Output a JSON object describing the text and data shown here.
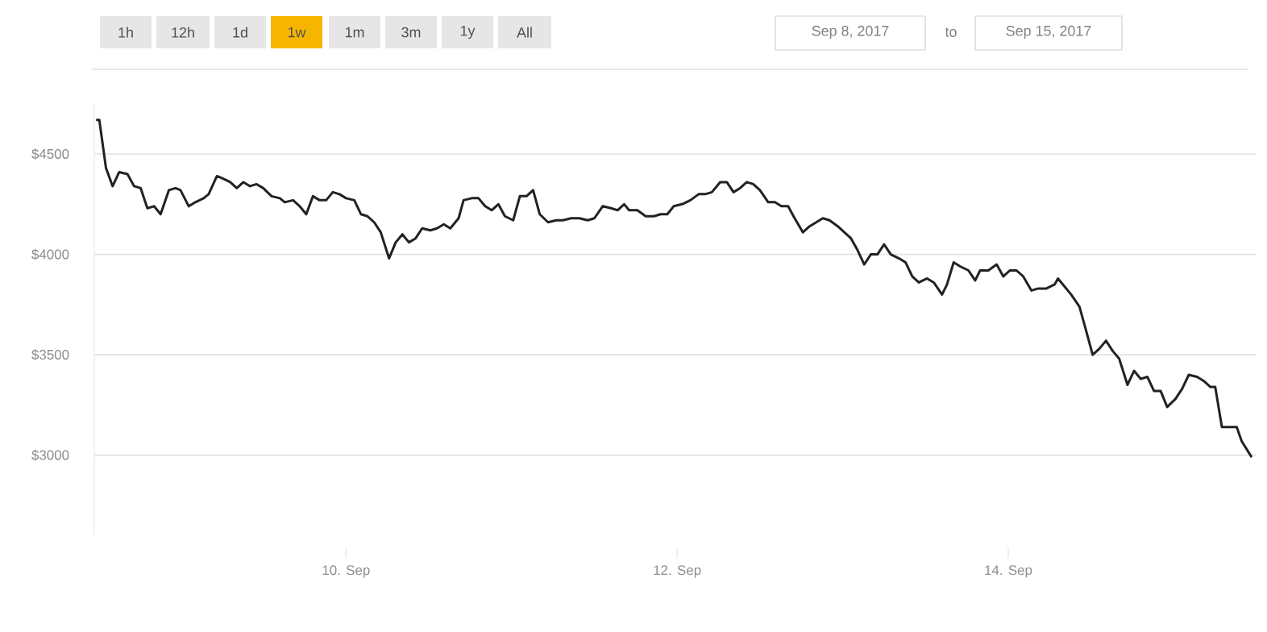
{
  "chart_data": {
    "type": "line",
    "grid": "y",
    "marker": "none",
    "line_style": "solid",
    "xlim": [
      "2017-09-08T11:31",
      "2017-09-15T12:00"
    ],
    "ylim": [
      2600,
      4750
    ],
    "xticks": [
      {
        "value": "2017-09-10",
        "label": "10. Sep"
      },
      {
        "value": "2017-09-12",
        "label": "12. Sep"
      },
      {
        "value": "2017-09-14",
        "label": "14. Sep"
      }
    ],
    "yticks": [
      {
        "value": 3000,
        "label": "$3000"
      },
      {
        "value": 3500,
        "label": "$3500"
      },
      {
        "value": 4000,
        "label": "$4000"
      },
      {
        "value": 4500,
        "label": "$4500"
      }
    ],
    "annotations": [
      "1h",
      "12h",
      "1d",
      "1w",
      "1m",
      "3m",
      "1y",
      "All",
      "Sep 8, 2017",
      "to",
      "Sep 15, 2017"
    ],
    "series": [
      {
        "color": "#222222",
        "x": [
          "2017-09-08T11:46",
          "2017-09-08T12:14",
          "2017-09-08T13:12",
          "2017-09-08T14:10",
          "2017-09-08T15:07",
          "2017-09-08T16:19",
          "2017-09-08T17:17",
          "2017-09-08T18:14",
          "2017-09-08T19:12",
          "2017-09-08T20:10",
          "2017-09-08T21:07",
          "2017-09-08T22:19",
          "2017-09-08T23:17",
          "2017-09-09T00:00",
          "2017-09-09T01:12",
          "2017-09-09T02:10",
          "2017-09-09T03:22",
          "2017-09-09T04:05",
          "2017-09-09T05:17",
          "2017-09-09T06:00",
          "2017-09-09T07:12",
          "2017-09-09T08:10",
          "2017-09-09T09:07",
          "2017-09-09T10:05",
          "2017-09-09T11:02",
          "2017-09-09T12:00",
          "2017-09-09T13:12",
          "2017-09-09T14:24",
          "2017-09-09T15:07",
          "2017-09-09T16:19",
          "2017-09-09T17:17",
          "2017-09-09T18:14",
          "2017-09-09T19:12",
          "2017-09-09T20:10",
          "2017-09-09T21:07",
          "2017-09-09T22:05",
          "2017-09-09T23:02",
          "2017-09-10T00:00",
          "2017-09-10T01:12",
          "2017-09-10T02:10",
          "2017-09-10T03:07",
          "2017-09-10T04:05",
          "2017-09-10T05:02",
          "2017-09-10T06:14",
          "2017-09-10T07:12",
          "2017-09-10T08:10",
          "2017-09-10T09:07",
          "2017-09-10T10:05",
          "2017-09-10T11:02",
          "2017-09-10T12:14",
          "2017-09-10T13:12",
          "2017-09-10T14:10",
          "2017-09-10T15:07",
          "2017-09-10T16:19",
          "2017-09-10T17:02",
          "2017-09-10T18:14",
          "2017-09-10T19:12",
          "2017-09-10T20:10",
          "2017-09-10T21:07",
          "2017-09-10T22:05",
          "2017-09-10T23:02",
          "2017-09-11T00:14",
          "2017-09-11T01:12",
          "2017-09-11T02:10",
          "2017-09-11T03:07",
          "2017-09-11T04:05",
          "2017-09-11T05:17",
          "2017-09-11T06:29",
          "2017-09-11T07:26",
          "2017-09-11T08:38",
          "2017-09-11T09:50",
          "2017-09-11T11:02",
          "2017-09-11T12:00",
          "2017-09-11T13:12",
          "2017-09-11T14:24",
          "2017-09-11T15:22",
          "2017-09-11T16:19",
          "2017-09-11T17:02",
          "2017-09-11T18:14",
          "2017-09-11T19:26",
          "2017-09-11T20:38",
          "2017-09-11T21:36",
          "2017-09-11T22:34",
          "2017-09-11T23:31",
          "2017-09-12T00:43",
          "2017-09-12T01:55",
          "2017-09-12T03:07",
          "2017-09-12T04:05",
          "2017-09-12T05:02",
          "2017-09-12T06:14",
          "2017-09-12T07:12",
          "2017-09-12T08:10",
          "2017-09-12T09:07",
          "2017-09-12T10:05",
          "2017-09-12T11:02",
          "2017-09-12T12:00",
          "2017-09-12T13:12",
          "2017-09-12T14:10",
          "2017-09-12T15:07",
          "2017-09-12T16:05",
          "2017-09-12T17:02",
          "2017-09-12T18:14",
          "2017-09-12T19:12",
          "2017-09-12T20:10",
          "2017-09-12T21:07",
          "2017-09-12T22:05",
          "2017-09-12T23:17",
          "2017-09-13T00:14",
          "2017-09-13T01:12",
          "2017-09-13T02:10",
          "2017-09-13T03:07",
          "2017-09-13T04:05",
          "2017-09-13T05:02",
          "2017-09-13T06:00",
          "2017-09-13T06:58",
          "2017-09-13T08:10",
          "2017-09-13T09:07",
          "2017-09-13T10:05",
          "2017-09-13T11:02",
          "2017-09-13T12:14",
          "2017-09-13T13:12",
          "2017-09-13T14:24",
          "2017-09-13T15:07",
          "2017-09-13T16:05",
          "2017-09-13T17:02",
          "2017-09-13T18:14",
          "2017-09-13T19:12",
          "2017-09-13T19:55",
          "2017-09-13T21:07",
          "2017-09-13T22:19",
          "2017-09-13T23:17",
          "2017-09-14T00:14",
          "2017-09-14T01:12",
          "2017-09-14T02:10",
          "2017-09-14T03:22",
          "2017-09-14T04:19",
          "2017-09-14T05:31",
          "2017-09-14T06:43",
          "2017-09-14T07:12",
          "2017-09-14T08:10",
          "2017-09-14T09:07",
          "2017-09-14T10:19",
          "2017-09-14T11:17",
          "2017-09-14T12:14",
          "2017-09-14T13:12",
          "2017-09-14T14:10",
          "2017-09-14T15:07",
          "2017-09-14T16:05",
          "2017-09-14T17:17",
          "2017-09-14T18:14",
          "2017-09-14T19:12",
          "2017-09-14T20:10",
          "2017-09-14T21:07",
          "2017-09-14T22:05",
          "2017-09-14T23:02",
          "2017-09-15T00:14",
          "2017-09-15T01:12",
          "2017-09-15T02:10",
          "2017-09-15T03:22",
          "2017-09-15T04:19",
          "2017-09-15T05:17",
          "2017-09-15T06:00",
          "2017-09-15T06:58",
          "2017-09-15T07:55",
          "2017-09-15T09:07",
          "2017-09-15T09:50",
          "2017-09-15T11:17"
        ],
        "values": [
          4670,
          4670,
          4430,
          4340,
          4410,
          4400,
          4340,
          4330,
          4230,
          4240,
          4200,
          4320,
          4330,
          4320,
          4240,
          4260,
          4280,
          4300,
          4390,
          4380,
          4360,
          4330,
          4360,
          4340,
          4350,
          4330,
          4290,
          4280,
          4260,
          4270,
          4240,
          4200,
          4290,
          4270,
          4270,
          4310,
          4300,
          4280,
          4270,
          4200,
          4190,
          4160,
          4110,
          3980,
          4060,
          4100,
          4060,
          4080,
          4130,
          4120,
          4130,
          4150,
          4130,
          4180,
          4270,
          4280,
          4280,
          4240,
          4220,
          4250,
          4190,
          4170,
          4290,
          4290,
          4320,
          4200,
          4160,
          4170,
          4170,
          4180,
          4180,
          4170,
          4180,
          4240,
          4230,
          4220,
          4250,
          4220,
          4220,
          4190,
          4190,
          4200,
          4200,
          4240,
          4250,
          4270,
          4300,
          4300,
          4310,
          4360,
          4360,
          4310,
          4330,
          4360,
          4350,
          4320,
          4260,
          4260,
          4240,
          4240,
          4180,
          4110,
          4140,
          4160,
          4180,
          4170,
          4140,
          4110,
          4080,
          4020,
          3950,
          4000,
          4000,
          4050,
          4000,
          3980,
          3960,
          3890,
          3860,
          3880,
          3860,
          3800,
          3850,
          3960,
          3940,
          3920,
          3870,
          3920,
          3920,
          3950,
          3890,
          3920,
          3920,
          3890,
          3820,
          3830,
          3830,
          3850,
          3880,
          3840,
          3800,
          3740,
          3620,
          3500,
          3530,
          3570,
          3520,
          3480,
          3350,
          3420,
          3380,
          3390,
          3320,
          3320,
          3240,
          3280,
          3330,
          3400,
          3390,
          3370,
          3340,
          3340,
          3140,
          3140,
          3140,
          3070,
          2990
        ]
      }
    ]
  }
}
